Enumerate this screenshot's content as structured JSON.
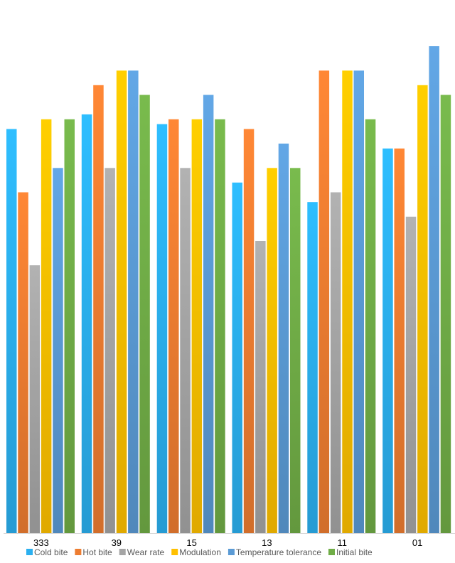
{
  "chart_data": {
    "type": "bar",
    "title": "",
    "xlabel": "",
    "ylabel": "",
    "ylim": [
      0,
      100
    ],
    "grid": false,
    "legend_position": "bottom",
    "categories": [
      "333",
      "39",
      "15",
      "13",
      "11",
      "01"
    ],
    "series": [
      {
        "name": "Cold bite",
        "color": "#2BB0F0",
        "values": [
          83,
          86,
          84,
          72,
          68,
          79
        ]
      },
      {
        "name": "Hot bite",
        "color": "#ED7D31",
        "values": [
          70,
          92,
          85,
          83,
          95,
          79
        ]
      },
      {
        "name": "Wear rate",
        "color": "#A5A5A5",
        "values": [
          55,
          75,
          75,
          60,
          70,
          65
        ]
      },
      {
        "name": "Modulation",
        "color": "#FFC000",
        "values": [
          85,
          95,
          85,
          75,
          95,
          92
        ]
      },
      {
        "name": "Temperature tolerance",
        "color": "#5B9BD5",
        "values": [
          75,
          95,
          90,
          80,
          95,
          100
        ]
      },
      {
        "name": "Initial bite",
        "color": "#70AD47",
        "values": [
          85,
          90,
          85,
          75,
          85,
          90
        ]
      }
    ]
  }
}
